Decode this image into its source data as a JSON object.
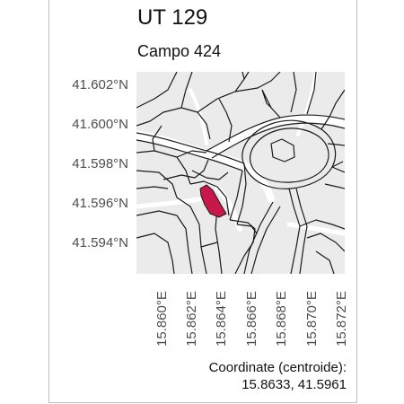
{
  "map": {
    "title": "UT 129",
    "subtitle": "Campo 424",
    "lat_ticks": [
      "41.602°N",
      "41.600°N",
      "41.598°N",
      "41.596°N",
      "41.594°N"
    ],
    "lon_ticks": [
      "15.860°E",
      "15.862°E",
      "15.864°E",
      "15.866°E",
      "15.868°E",
      "15.870°E",
      "15.872°E"
    ],
    "caption_label": "Coordinate (centroide):",
    "caption_value": "15.8633, 41.5961",
    "colors": {
      "background": "#ebebeb",
      "roads": "#ffffff",
      "lines": "#1a1a1a",
      "parcel": "#c8184a"
    },
    "centroid": {
      "lon": 15.8633,
      "lat": 41.5961
    }
  }
}
